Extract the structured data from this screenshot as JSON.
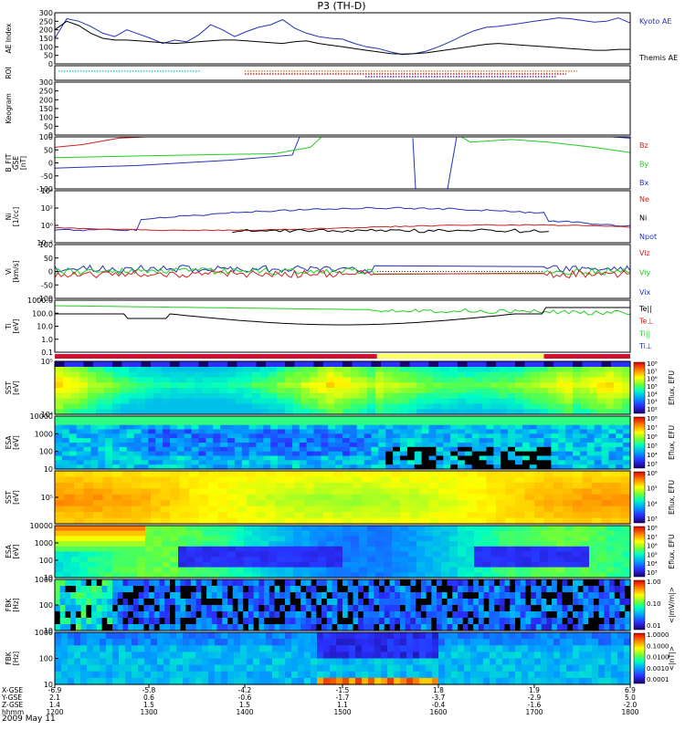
{
  "chart_data": {
    "type": "stacked-timeseries",
    "title": "P3 (TH-D)",
    "date_label": "2009 May 11",
    "x_axis": {
      "rows": [
        {
          "label": "X-GSE",
          "values": [
            "-6.9",
            "-5.8",
            "-4.2",
            "-1.5",
            "1.8",
            "1.9",
            "6.9"
          ]
        },
        {
          "label": "Y-GSE",
          "values": [
            "2.1",
            "0.6",
            "-0.6",
            "-1.7",
            "-3.7",
            "-2.9",
            "5.0"
          ]
        },
        {
          "label": "Z-GSE",
          "values": [
            "1.4",
            "1.5",
            "1.5",
            "1.1",
            "-0.4",
            "-1.6",
            "-2.0"
          ]
        },
        {
          "label": "hhmm",
          "values": [
            "1200",
            "1300",
            "1400",
            "1500",
            "1600",
            "1700",
            "1800"
          ]
        }
      ]
    },
    "panels": [
      {
        "id": "ae",
        "ylabel_lines": [
          "AE Index"
        ],
        "y_ticks": [
          "300",
          "250",
          "200",
          "150",
          "100",
          "50",
          "0"
        ],
        "legend": [
          {
            "text": "Kyoto AE",
            "color": "#2233bb"
          },
          {
            "text": "Themis AE",
            "color": "#000000"
          }
        ],
        "series": [
          {
            "name": "Kyoto AE",
            "color": "#2233bb",
            "values": [
              150,
              265,
              250,
              220,
              180,
              160,
              200,
              175,
              150,
              120,
              140,
              130,
              170,
              230,
              200,
              160,
              190,
              215,
              230,
              260,
              210,
              180,
              160,
              150,
              145,
              120,
              100,
              90,
              70,
              55,
              60,
              75,
              100,
              130,
              165,
              195,
              215,
              220,
              230,
              240,
              250,
              260,
              270,
              265,
              255,
              245,
              250,
              270,
              240
            ]
          },
          {
            "name": "Themis AE",
            "color": "#000000",
            "values": [
              200,
              250,
              225,
              180,
              150,
              140,
              140,
              135,
              130,
              125,
              120,
              125,
              130,
              135,
              140,
              140,
              135,
              130,
              125,
              120,
              130,
              135,
              120,
              110,
              100,
              90,
              80,
              70,
              60,
              58,
              60,
              65,
              75,
              85,
              95,
              105,
              115,
              120,
              115,
              110,
              105,
              100,
              95,
              90,
              85,
              80,
              80,
              85,
              85
            ]
          }
        ]
      },
      {
        "id": "roi",
        "ylabel_lines": [
          "ROI"
        ],
        "y_ticks": []
      },
      {
        "id": "keogram",
        "ylabel_lines": [
          "Keogram"
        ],
        "y_ticks": [
          "300",
          "250",
          "200",
          "150",
          "100",
          "50",
          "0"
        ]
      },
      {
        "id": "bfit",
        "ylabel_lines": [
          "B_FIT",
          "GSE",
          "[nT]"
        ],
        "y_ticks": [
          "100",
          "50",
          "0",
          "-50",
          "-100"
        ],
        "legend": [
          {
            "text": "Bz",
            "color": "#cc2222"
          },
          {
            "text": "By",
            "color": "#22cc22"
          },
          {
            "text": "Bx",
            "color": "#2233bb"
          }
        ]
      },
      {
        "id": "density",
        "ylabel_lines": [
          "Ni",
          "[1/cc]"
        ],
        "y_ticks": [
          "10⁴",
          "10²",
          "10⁰",
          "10⁻²"
        ],
        "legend": [
          {
            "text": "Ne",
            "color": "#cc2222"
          },
          {
            "text": "Ni",
            "color": "#000000"
          },
          {
            "text": "Npot",
            "color": "#2233bb"
          }
        ]
      },
      {
        "id": "velocity",
        "ylabel_lines": [
          "Vi",
          "[km/s]"
        ],
        "y_ticks": [
          "100",
          "50",
          "0",
          "-50",
          "-100"
        ],
        "legend": [
          {
            "text": "Viz",
            "color": "#cc2222"
          },
          {
            "text": "Viy",
            "color": "#22cc22"
          },
          {
            "text": "Vix",
            "color": "#2233bb"
          }
        ]
      },
      {
        "id": "temperature",
        "ylabel_lines": [
          "Ti",
          "[eV]"
        ],
        "y_ticks": [
          "1000.0",
          "100.0",
          "10.0",
          "1.0",
          "0.1"
        ],
        "legend": [
          {
            "text": "Te||",
            "color": "#000000"
          },
          {
            "text": "Te⊥",
            "color": "#cc2222"
          },
          {
            "text": "Ti||",
            "color": "#22cc22"
          },
          {
            "text": "Ti⊥",
            "color": "#2233bb"
          }
        ]
      },
      {
        "id": "sst-e",
        "ylabel_lines": [
          "SST",
          "[eV]"
        ],
        "y_ticks": [
          "10⁵",
          "10⁴"
        ],
        "colorbar": {
          "label": "Eflux, EFU",
          "ticks": [
            "10⁸",
            "10⁷",
            "10⁶",
            "10⁵",
            "10⁴",
            "10³",
            "10²"
          ]
        }
      },
      {
        "id": "esa-e",
        "ylabel_lines": [
          "ESA",
          "[eV]"
        ],
        "y_ticks": [
          "10000",
          "1000",
          "100",
          "10"
        ],
        "colorbar": {
          "label": "Eflux, EFU",
          "ticks": [
            "10⁸",
            "10⁷",
            "10⁶",
            "10⁵",
            "10⁴",
            "10³"
          ]
        }
      },
      {
        "id": "sst-i",
        "ylabel_lines": [
          "SST",
          "[eV]"
        ],
        "y_ticks": [
          "10⁵"
        ],
        "colorbar": {
          "label": "Eflux, EFU",
          "ticks": [
            "10⁶",
            "10⁵",
            "10⁴",
            "10³"
          ]
        }
      },
      {
        "id": "esa-i",
        "ylabel_lines": [
          "ESA",
          "[eV]"
        ],
        "y_ticks": [
          "10000",
          "1000",
          "100",
          "10"
        ],
        "colorbar": {
          "label": "Eflux, EFU",
          "ticks": [
            "10⁸",
            "10⁷",
            "10⁶",
            "10⁵",
            "10⁴",
            "10³"
          ]
        }
      },
      {
        "id": "fbk-e",
        "ylabel_lines": [
          "FBK",
          "[Hz]"
        ],
        "y_ticks": [
          "1000",
          "100",
          "10"
        ],
        "colorbar": {
          "label": "<|mV/m|>",
          "ticks": [
            "1.00",
            "0.10",
            "0.01"
          ]
        }
      },
      {
        "id": "fbk-b",
        "ylabel_lines": [
          "FBK",
          "[Hz]"
        ],
        "y_ticks": [
          "1000",
          "100",
          "10"
        ],
        "colorbar": {
          "label": "<|nT|>",
          "ticks": [
            "1.0000",
            "0.1000",
            "0.0100",
            "0.0010",
            "0.0001"
          ]
        }
      }
    ]
  }
}
